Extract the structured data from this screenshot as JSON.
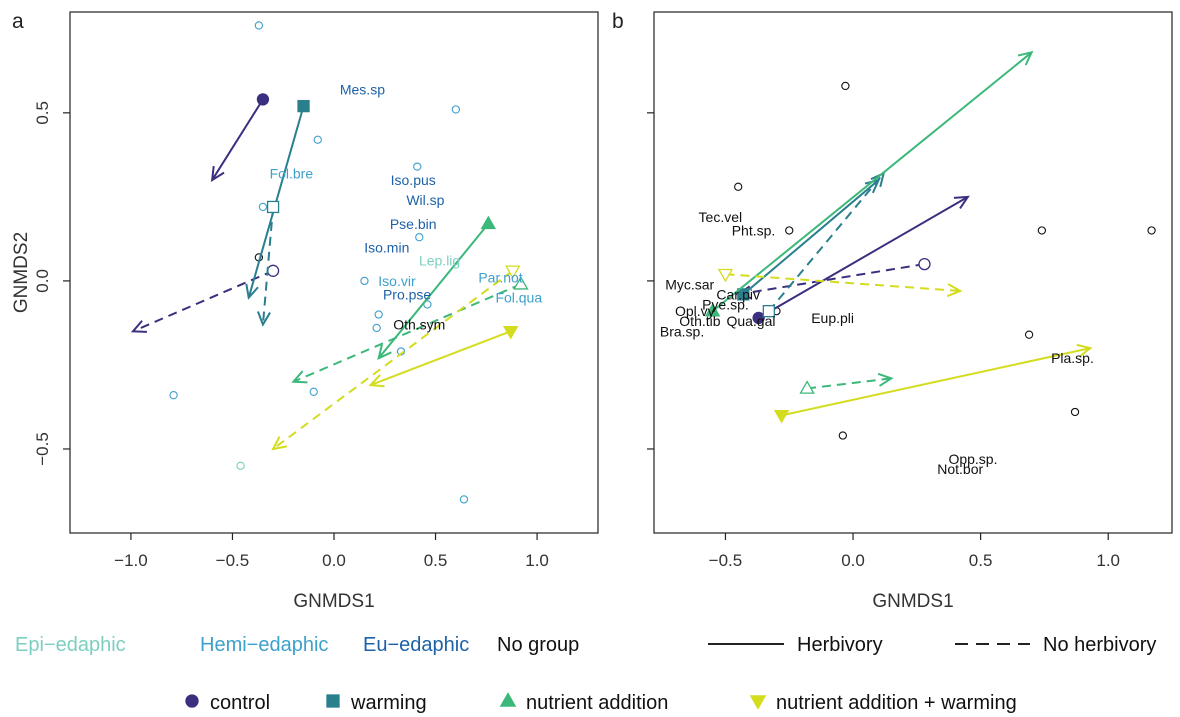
{
  "colors": {
    "control": "#3b2f80",
    "warming": "#2a7f8f",
    "nutrient": "#3bb87a",
    "nutwarm": "#d4dc1e",
    "epi": "#7ccfc0",
    "hemi": "#3ea0cc",
    "eu": "#1d62a8",
    "nogroup": "#111111"
  },
  "chart_data": [
    {
      "panel": "a",
      "type": "scatter",
      "xlabel": "GNMDS1",
      "ylabel": "GNMDS2",
      "xlim": [
        -1.3,
        1.3
      ],
      "ylim": [
        -0.75,
        0.8
      ],
      "xticks": [
        -1.0,
        -0.5,
        0.0,
        0.5,
        1.0
      ],
      "yticks": [
        -0.5,
        0.0,
        0.5
      ],
      "xtick_labels": [
        "−1.0",
        "−0.5",
        "0.0",
        "0.5",
        "1.0"
      ],
      "ytick_labels": [
        "−0.5",
        "0.0",
        "0.5"
      ],
      "species_points": [
        {
          "x": -0.37,
          "y": 0.76,
          "group": "hemi"
        },
        {
          "x": 0.6,
          "y": 0.51,
          "group": "hemi"
        },
        {
          "x": -0.08,
          "y": 0.42,
          "group": "hemi"
        },
        {
          "x": 0.41,
          "y": 0.34,
          "group": "hemi"
        },
        {
          "x": -0.35,
          "y": 0.22,
          "group": "hemi"
        },
        {
          "x": 0.42,
          "y": 0.13,
          "group": "hemi"
        },
        {
          "x": -0.37,
          "y": 0.07,
          "group": "nogroup"
        },
        {
          "x": 0.15,
          "y": 0.0,
          "group": "hemi"
        },
        {
          "x": 0.46,
          "y": -0.07,
          "group": "hemi"
        },
        {
          "x": 0.22,
          "y": -0.1,
          "group": "hemi"
        },
        {
          "x": 0.21,
          "y": -0.14,
          "group": "hemi"
        },
        {
          "x": 0.33,
          "y": -0.21,
          "group": "hemi"
        },
        {
          "x": -0.1,
          "y": -0.33,
          "group": "hemi"
        },
        {
          "x": -0.79,
          "y": -0.34,
          "group": "hemi"
        },
        {
          "x": -0.46,
          "y": -0.55,
          "group": "epi"
        },
        {
          "x": 0.64,
          "y": -0.65,
          "group": "hemi"
        }
      ],
      "species_labels": [
        {
          "x": 0.14,
          "y": 0.57,
          "text": "Mes.sp",
          "group": "eu"
        },
        {
          "x": -0.21,
          "y": 0.32,
          "text": "Fol.bre",
          "group": "hemi"
        },
        {
          "x": 0.39,
          "y": 0.3,
          "text": "Iso.pus",
          "group": "eu"
        },
        {
          "x": 0.45,
          "y": 0.24,
          "text": "Wil.sp",
          "group": "eu"
        },
        {
          "x": 0.39,
          "y": 0.17,
          "text": "Pse.bin",
          "group": "eu"
        },
        {
          "x": 0.26,
          "y": 0.1,
          "text": "Iso.min",
          "group": "eu"
        },
        {
          "x": 0.52,
          "y": 0.06,
          "text": "Lep.lig",
          "group": "epi"
        },
        {
          "x": 0.31,
          "y": 0.0,
          "text": "Iso.vir",
          "group": "hemi"
        },
        {
          "x": 0.82,
          "y": 0.01,
          "text": "Par.not",
          "group": "hemi"
        },
        {
          "x": 0.91,
          "y": -0.05,
          "text": "Fol.qua",
          "group": "hemi"
        },
        {
          "x": 0.36,
          "y": -0.04,
          "text": "Pro.pse",
          "group": "eu"
        },
        {
          "x": 0.42,
          "y": -0.13,
          "text": "Oth.sym",
          "group": "nogroup"
        }
      ],
      "series": [
        {
          "name": "control",
          "treatment": "control",
          "herbivory": true,
          "from": [
            -0.35,
            0.54
          ],
          "to": [
            -0.6,
            0.3
          ]
        },
        {
          "name": "control",
          "treatment": "control",
          "herbivory": false,
          "from": [
            -0.3,
            0.03
          ],
          "to": [
            -0.99,
            -0.15
          ]
        },
        {
          "name": "warming",
          "treatment": "warming",
          "herbivory": true,
          "from": [
            -0.15,
            0.52
          ],
          "to": [
            -0.42,
            -0.05
          ]
        },
        {
          "name": "warming",
          "treatment": "warming",
          "herbivory": false,
          "from": [
            -0.3,
            0.22
          ],
          "to": [
            -0.35,
            -0.13
          ]
        },
        {
          "name": "nutrient addition",
          "treatment": "nutrient",
          "herbivory": true,
          "from": [
            0.76,
            0.17
          ],
          "to": [
            0.22,
            -0.23
          ]
        },
        {
          "name": "nutrient addition",
          "treatment": "nutrient",
          "herbivory": false,
          "from": [
            0.92,
            -0.01
          ],
          "to": [
            -0.2,
            -0.3
          ]
        },
        {
          "name": "nutrient addition + warming",
          "treatment": "nutwarm",
          "herbivory": true,
          "from": [
            0.87,
            -0.15
          ],
          "to": [
            0.18,
            -0.31
          ]
        },
        {
          "name": "nutrient addition + warming",
          "treatment": "nutwarm",
          "herbivory": false,
          "from": [
            0.88,
            0.03
          ],
          "to": [
            -0.3,
            -0.5
          ]
        }
      ]
    },
    {
      "panel": "b",
      "type": "scatter",
      "xlabel": "GNMDS1",
      "ylabel": "",
      "xlim": [
        -0.78,
        1.25
      ],
      "ylim": [
        -0.75,
        0.8
      ],
      "xticks": [
        -0.5,
        0.0,
        0.5,
        1.0
      ],
      "yticks": [
        -0.5,
        0.0,
        0.5
      ],
      "xtick_labels": [
        "−0.5",
        "0.0",
        "0.5",
        "1.0"
      ],
      "ytick_labels": [
        "",
        "",
        ""
      ],
      "species_points": [
        {
          "x": -0.03,
          "y": 0.58,
          "group": "nogroup"
        },
        {
          "x": -0.45,
          "y": 0.28,
          "group": "nogroup"
        },
        {
          "x": -0.25,
          "y": 0.15,
          "group": "nogroup"
        },
        {
          "x": 0.74,
          "y": 0.15,
          "group": "nogroup"
        },
        {
          "x": 1.17,
          "y": 0.15,
          "group": "nogroup"
        },
        {
          "x": -0.3,
          "y": -0.09,
          "group": "nogroup"
        },
        {
          "x": 0.69,
          "y": -0.16,
          "group": "nogroup"
        },
        {
          "x": 0.87,
          "y": -0.39,
          "group": "nogroup"
        },
        {
          "x": -0.04,
          "y": -0.46,
          "group": "nogroup"
        }
      ],
      "species_labels": [
        {
          "x": -0.52,
          "y": 0.19,
          "text": "Tec.vel",
          "group": "nogroup"
        },
        {
          "x": -0.39,
          "y": 0.15,
          "text": "Pht.sp.",
          "group": "nogroup"
        },
        {
          "x": -0.64,
          "y": -0.01,
          "text": "Myc.sar",
          "group": "nogroup"
        },
        {
          "x": -0.45,
          "y": -0.04,
          "text": "Car.piv",
          "group": "nogroup"
        },
        {
          "x": -0.5,
          "y": -0.07,
          "text": "Pye.sp.",
          "group": "nogroup"
        },
        {
          "x": -0.62,
          "y": -0.09,
          "text": "Opl.vy",
          "group": "nogroup"
        },
        {
          "x": -0.6,
          "y": -0.12,
          "text": "Oth.tib",
          "group": "nogroup"
        },
        {
          "x": -0.4,
          "y": -0.12,
          "text": "Qua.gal",
          "group": "nogroup"
        },
        {
          "x": -0.67,
          "y": -0.15,
          "text": "Bra.sp.",
          "group": "nogroup"
        },
        {
          "x": -0.08,
          "y": -0.11,
          "text": "Eup.pli",
          "group": "nogroup"
        },
        {
          "x": 0.86,
          "y": -0.23,
          "text": "Pla.sp.",
          "group": "nogroup"
        },
        {
          "x": 0.47,
          "y": -0.53,
          "text": "Opp.sp.",
          "group": "nogroup"
        },
        {
          "x": 0.42,
          "y": -0.56,
          "text": "Not.bor",
          "group": "nogroup"
        }
      ],
      "series": [
        {
          "name": "control",
          "treatment": "control",
          "herbivory": true,
          "from": [
            -0.37,
            -0.11
          ],
          "to": [
            0.45,
            0.25
          ]
        },
        {
          "name": "control",
          "treatment": "control",
          "herbivory": false,
          "from": [
            0.28,
            0.05
          ],
          "to": [
            -0.45,
            -0.04
          ]
        },
        {
          "name": "warming",
          "treatment": "warming",
          "herbivory": true,
          "from": [
            -0.43,
            -0.04
          ],
          "to": [
            0.1,
            0.3
          ]
        },
        {
          "name": "warming",
          "treatment": "warming",
          "herbivory": false,
          "from": [
            -0.33,
            -0.09
          ],
          "to": [
            0.12,
            0.32
          ]
        },
        {
          "name": "nutrient addition",
          "treatment": "nutrient",
          "herbivory": true,
          "from": [
            -0.55,
            -0.09
          ],
          "to": [
            0.7,
            0.68
          ]
        },
        {
          "name": "nutrient addition",
          "treatment": "nutrient",
          "herbivory": false,
          "from": [
            -0.18,
            -0.32
          ],
          "to": [
            0.15,
            -0.29
          ]
        },
        {
          "name": "nutrient addition + warming",
          "treatment": "nutwarm",
          "herbivory": true,
          "from": [
            -0.28,
            -0.4
          ],
          "to": [
            0.93,
            -0.2
          ]
        },
        {
          "name": "nutrient addition + warming",
          "treatment": "nutwarm",
          "herbivory": false,
          "from": [
            -0.5,
            0.02
          ],
          "to": [
            0.42,
            -0.03
          ]
        }
      ]
    }
  ],
  "group_legend": [
    {
      "key": "epi",
      "label": "Epi−edaphic"
    },
    {
      "key": "hemi",
      "label": "Hemi−edaphic"
    },
    {
      "key": "eu",
      "label": "Eu−edaphic"
    },
    {
      "key": "nogroup",
      "label": "No group"
    }
  ],
  "line_legend": [
    {
      "style": "solid",
      "label": "Herbivory"
    },
    {
      "style": "dashed",
      "label": "No herbivory"
    }
  ],
  "treatment_legend": [
    {
      "key": "control",
      "shape": "circle",
      "label": "control"
    },
    {
      "key": "warming",
      "shape": "square",
      "label": "warming"
    },
    {
      "key": "nutrient",
      "shape": "triangle-up",
      "label": "nutrient addition"
    },
    {
      "key": "nutwarm",
      "shape": "triangle-down",
      "label": "nutrient addition + warming"
    }
  ]
}
